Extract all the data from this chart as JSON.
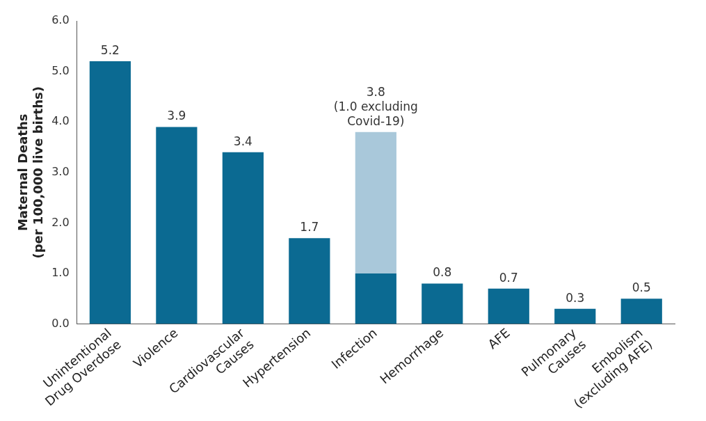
{
  "chart_data": {
    "type": "bar",
    "ylabel": "Maternal Deaths\n(per 100,000 live births)",
    "categories": [
      "Unintentional\nDrug Overdose",
      "Violence",
      "Cardiovascular\nCauses",
      "Hypertension",
      "Infection",
      "Hemorrhage",
      "AFE",
      "Pulmonary\nCauses",
      "Embolism\n(excluding AFE)"
    ],
    "stacked": true,
    "series": [
      {
        "color": "#0b6a92",
        "values": [
          5.2,
          3.9,
          3.4,
          1.7,
          1.0,
          0.8,
          0.7,
          0.3,
          0.5
        ]
      },
      {
        "color": "#a9c8da",
        "values": [
          null,
          null,
          null,
          null,
          2.8,
          null,
          null,
          null,
          null
        ]
      }
    ],
    "totals": [
      "5.2",
      "3.9",
      "3.4",
      "1.7",
      "3.8\n(1.0 excluding\nCovid-19)",
      "0.8",
      "0.7",
      "0.3",
      "0.5"
    ],
    "ylim": [
      0,
      6
    ],
    "yticks": [
      {
        "value": 0,
        "label": "0.0"
      },
      {
        "value": 1,
        "label": "1.0"
      },
      {
        "value": 2,
        "label": "2.0"
      },
      {
        "value": 3,
        "label": "3.0"
      },
      {
        "value": 4,
        "label": "4.0"
      },
      {
        "value": 5,
        "label": "5.0"
      },
      {
        "value": 6,
        "label": "6.0"
      }
    ],
    "grid": false,
    "legend": false
  }
}
